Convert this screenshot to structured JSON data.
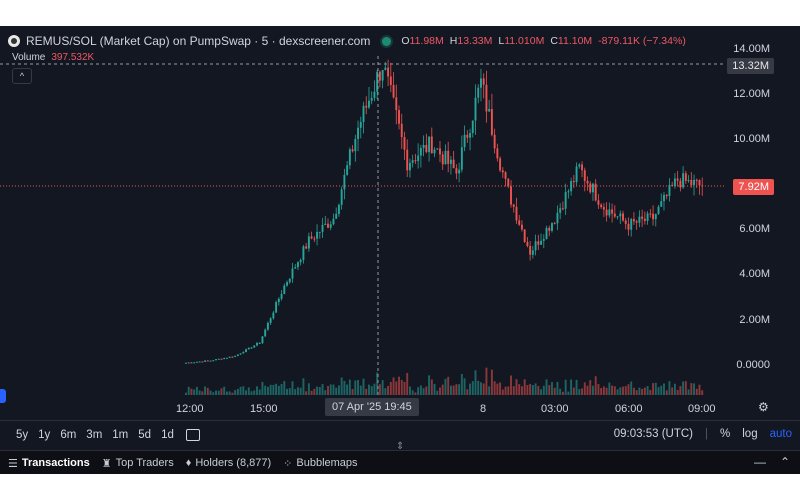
{
  "header": {
    "title": "REMUS/SOL (Market Cap) on PumpSwap · 5 · dexscreener.com",
    "ohlc": {
      "o_label": "O",
      "o": "11.98M",
      "h_label": "H",
      "h": "13.33M",
      "l_label": "L",
      "l": "11.010M",
      "c_label": "C",
      "c": "11.10M",
      "change": "-879.11K (−7.34%)"
    },
    "volume_label": "Volume",
    "volume_value": "397.532K",
    "collapse_icon": "chevron-up-icon"
  },
  "price_axis": {
    "ticks": [
      "14.00M",
      "12.00M",
      "10.00M",
      "8.00M",
      "6.00M",
      "4.00M",
      "2.00M",
      "0.0000"
    ],
    "crosshair_label": "13.32M",
    "last_price_label": "7.92M"
  },
  "time_axis": {
    "ticks": [
      "12:00",
      "15:00",
      "8",
      "03:00",
      "06:00",
      "09:00"
    ],
    "crosshair_label": "07 Apr '25   19:45"
  },
  "toolbar": {
    "ranges": [
      "5y",
      "1y",
      "6m",
      "3m",
      "1m",
      "5d",
      "1d"
    ],
    "calendar_icon": "calendar-icon",
    "clock": "09:03:53 (UTC)",
    "percent": "%",
    "log": "log",
    "auto": "auto"
  },
  "tabs": [
    {
      "label": "Transactions",
      "icon": "list-icon"
    },
    {
      "label": "Top Traders",
      "icon": "trophy-icon"
    },
    {
      "label": "Holders (8,877)",
      "icon": "diamond-icon"
    },
    {
      "label": "Bubblemaps",
      "icon": "bubbles-icon"
    }
  ],
  "colors": {
    "up": "#26a69a",
    "down": "#ef5350",
    "background": "#131722",
    "accent": "#2962ff"
  },
  "chart_data": {
    "type": "candlestick",
    "y_unit": "market cap",
    "ylim": [
      0,
      14000000
    ],
    "last_price": 7920000,
    "crosshair_price": 13320000,
    "keypoints": [
      {
        "t": "07 Apr 11:00",
        "v": 100000
      },
      {
        "t": "07 Apr 14:00",
        "v": 200000
      },
      {
        "t": "07 Apr 15:00",
        "v": 400000
      },
      {
        "t": "07 Apr 16:00",
        "v": 1000000
      },
      {
        "t": "07 Apr 17:00",
        "v": 3500000
      },
      {
        "t": "07 Apr 18:00",
        "v": 5500000
      },
      {
        "t": "07 Apr 18:30",
        "v": 6500000
      },
      {
        "t": "07 Apr 19:00",
        "v": 10500000
      },
      {
        "t": "07 Apr 19:45",
        "v": 13330000
      },
      {
        "t": "07 Apr 20:30",
        "v": 9000000
      },
      {
        "t": "07 Apr 22:00",
        "v": 9800000
      },
      {
        "t": "07 Apr 23:00",
        "v": 8500000
      },
      {
        "t": "08 Apr 00:00",
        "v": 12500000
      },
      {
        "t": "08 Apr 01:00",
        "v": 8000000
      },
      {
        "t": "08 Apr 02:00",
        "v": 5000000
      },
      {
        "t": "08 Apr 03:00",
        "v": 6500000
      },
      {
        "t": "08 Apr 04:00",
        "v": 8700000
      },
      {
        "t": "08 Apr 05:00",
        "v": 7000000
      },
      {
        "t": "08 Apr 06:00",
        "v": 6200000
      },
      {
        "t": "08 Apr 07:00",
        "v": 6500000
      },
      {
        "t": "08 Apr 08:00",
        "v": 8200000
      },
      {
        "t": "08 Apr 09:00",
        "v": 7920000
      }
    ]
  }
}
